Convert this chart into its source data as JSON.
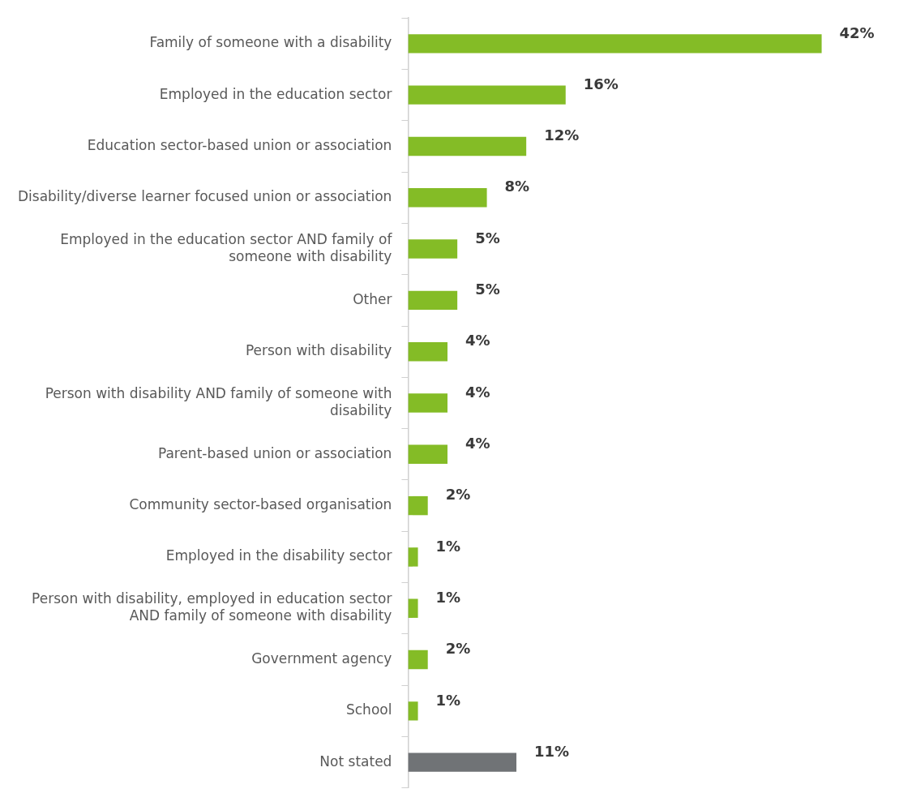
{
  "chart_data": {
    "type": "bar",
    "orientation": "horizontal",
    "tick_labels": "y",
    "grid": false,
    "legend": false,
    "categories": [
      "Family of someone with a disability",
      "Employed in the education sector",
      "Education sector-based union or association",
      "Disability/diverse learner focused union or association",
      "Employed in the education sector AND family of someone with disability",
      "Other",
      "Person with disability",
      "Person with disability AND family of someone with disability",
      "Parent-based union or association",
      "Community sector-based organisation",
      "Employed in the disability sector",
      "Person with disability, employed in education sector AND family of someone with disability",
      "Government agency",
      "School",
      "Not stated"
    ],
    "values": [
      42,
      16,
      12,
      8,
      5,
      5,
      4,
      4,
      4,
      2,
      1,
      1,
      2,
      1,
      11
    ],
    "value_labels": [
      "42%",
      "16%",
      "12%",
      "8%",
      "5%",
      "5%",
      "4%",
      "4%",
      "4%",
      "2%",
      "1%",
      "1%",
      "2%",
      "1%",
      "11%"
    ],
    "colors": [
      "#84bc26",
      "#84bc26",
      "#84bc26",
      "#84bc26",
      "#84bc26",
      "#84bc26",
      "#84bc26",
      "#84bc26",
      "#84bc26",
      "#84bc26",
      "#84bc26",
      "#84bc26",
      "#84bc26",
      "#84bc26",
      "#707376"
    ]
  }
}
